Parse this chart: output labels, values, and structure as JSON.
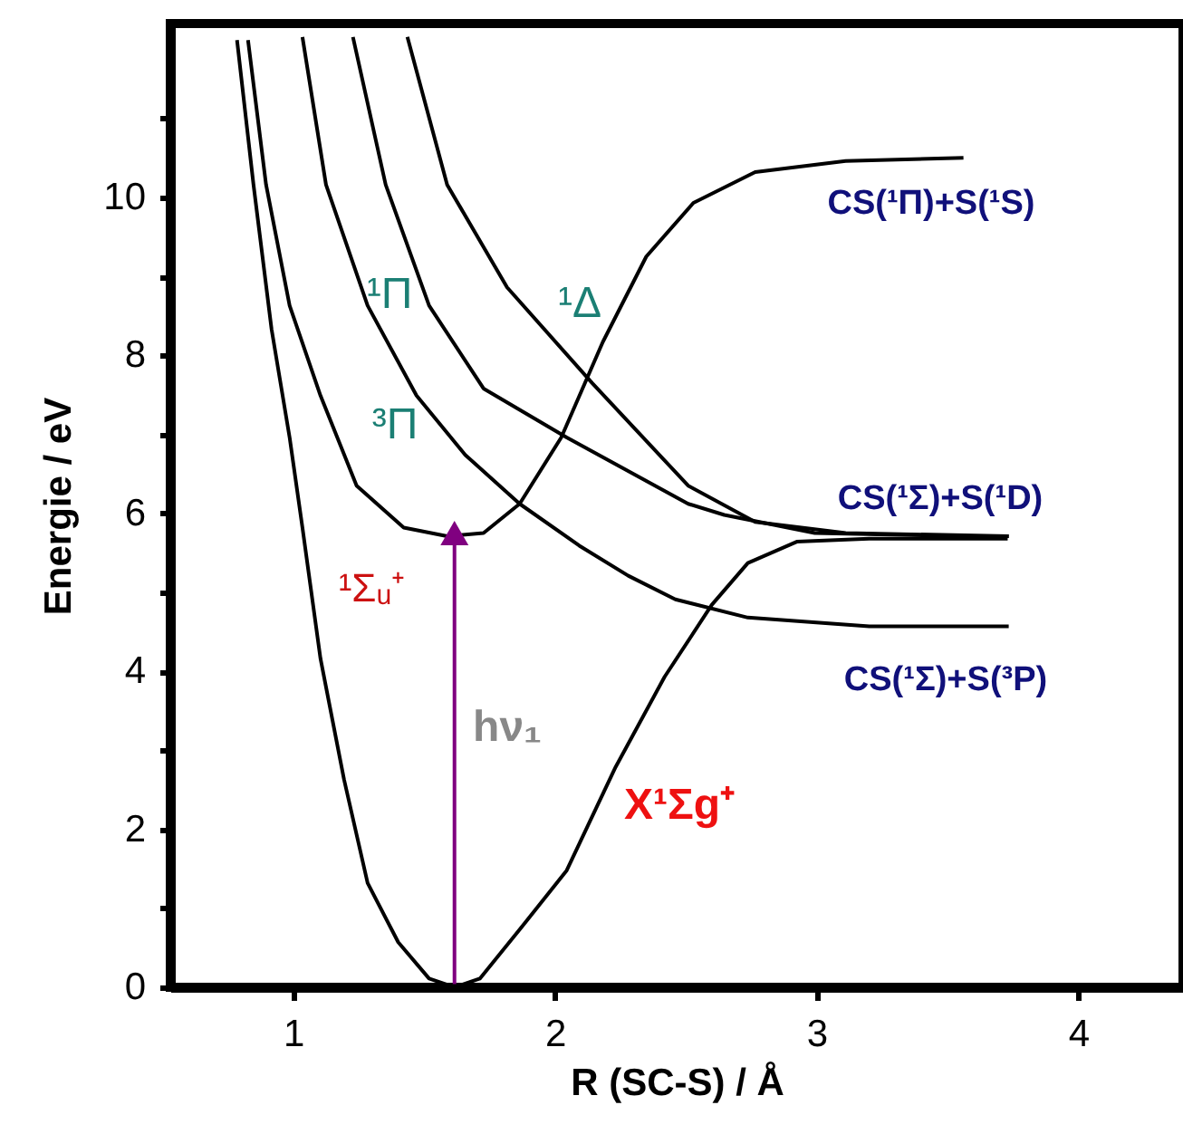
{
  "chart_data": {
    "type": "line",
    "xlabel": "R (SC-S) / Å",
    "ylabel": "Energie / eV",
    "xlim": [
      0.53,
      4.4
    ],
    "ylim": [
      0,
      12.2
    ],
    "xticks": [
      1,
      2,
      3,
      4
    ],
    "yticks": [
      0,
      {
        "value": 1,
        "label": null
      },
      2,
      {
        "value": 3,
        "label": null
      },
      4,
      {
        "value": 5,
        "label": null
      },
      6,
      {
        "value": 7,
        "label": null
      },
      8,
      {
        "value": 9,
        "label": null
      },
      10,
      {
        "value": 11,
        "label": null
      }
    ],
    "grid": false,
    "line_style": "solid",
    "series": [
      {
        "color": "#000000",
        "x": [
          0.785,
          0.848,
          0.917,
          0.986,
          1.035,
          1.104,
          1.194,
          1.284,
          1.401,
          1.519,
          1.616,
          1.713,
          1.865,
          2.045,
          2.232,
          2.419,
          2.599,
          2.737,
          2.924,
          3.2,
          3.73
        ],
        "values": [
          11.99,
          10.16,
          8.33,
          6.96,
          5.82,
          4.16,
          2.63,
          1.32,
          0.57,
          0.11,
          0.0,
          0.11,
          0.73,
          1.48,
          2.79,
          3.93,
          4.84,
          5.37,
          5.64,
          5.68,
          5.68
        ]
      },
      {
        "color": "#000000",
        "x": [
          0.827,
          0.896,
          0.986,
          1.104,
          1.242,
          1.422,
          1.588,
          1.727,
          1.865,
          2.024,
          2.183,
          2.349,
          2.529,
          2.765,
          3.111,
          3.561
        ],
        "values": [
          11.99,
          10.16,
          8.63,
          7.49,
          6.35,
          5.82,
          5.71,
          5.75,
          6.12,
          6.96,
          8.17,
          9.25,
          9.93,
          10.32,
          10.46,
          10.5
        ]
      },
      {
        "color": "#000000",
        "x": [
          1.035,
          1.125,
          1.284,
          1.471,
          1.657,
          1.865,
          2.093,
          2.28,
          2.46,
          2.737,
          3.201,
          3.734
        ],
        "values": [
          12.03,
          10.16,
          8.63,
          7.49,
          6.74,
          6.12,
          5.59,
          5.21,
          4.91,
          4.68,
          4.57,
          4.57
        ]
      },
      {
        "color": "#000000",
        "x": [
          1.228,
          1.353,
          1.519,
          1.727,
          2.045,
          2.509,
          2.647,
          2.993,
          3.561,
          3.734
        ],
        "values": [
          12.03,
          10.16,
          8.63,
          7.58,
          6.96,
          6.12,
          5.98,
          5.75,
          5.71,
          5.71
        ]
      },
      {
        "color": "#000000",
        "x": [
          1.436,
          1.588,
          1.817,
          2.142,
          2.509,
          2.765,
          3.111,
          3.734
        ],
        "values": [
          12.03,
          10.16,
          8.86,
          7.65,
          6.35,
          5.89,
          5.75,
          5.71
        ]
      },
      {
        "color": "#800080",
        "marker": "triangle",
        "x": [
          1.616,
          1.616
        ],
        "values": [
          0.04,
          5.75
        ]
      }
    ],
    "annotations": [
      "¹Π",
      "¹Δ",
      "³Π",
      "¹Σᵤ⁺",
      "hν₁",
      "X¹Σg⁺",
      "CS(¹Π)+S(¹S)",
      "CS(¹Σ)+S(¹D)",
      "CS(¹Σ)+S(³P)"
    ]
  }
}
